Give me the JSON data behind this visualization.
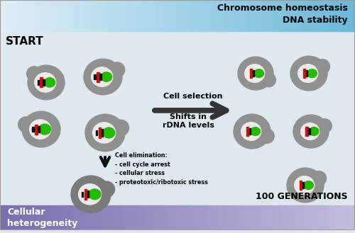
{
  "title_top": "Chromosome homeostasis\nDNA stability",
  "title_bottom_left": "Cellular\nheterogeneity",
  "label_start": "START",
  "label_generations": "100 GENERATIONS",
  "arrow_label_line1": "Cell selection",
  "arrow_label_line2": "Shifts in\nrDNA levels",
  "elim_label": "Cell elimination:\n- cell cycle arrest\n- cellular stress\n- proteotoxic/ribotoxic stress",
  "top_gradient_colors": [
    "#deeef7",
    "#6ab8d8"
  ],
  "bottom_gradient_colors": [
    "#7b6db0",
    "#c4bcdc"
  ],
  "bg_color": "#dde8ef",
  "cell_body_color": "#909090",
  "cell_nucleus_color": "#ebebeb",
  "cell_nucleolus_color": "#22bb00",
  "cell_chrom_red_color": "#cc1111",
  "cell_chrom_black_color": "#111111",
  "arrow_color": "#333333",
  "down_arrow_color": "#111111",
  "border_color": "#999999",
  "text_color_dark": "#000000",
  "text_color_white": "#ffffff"
}
